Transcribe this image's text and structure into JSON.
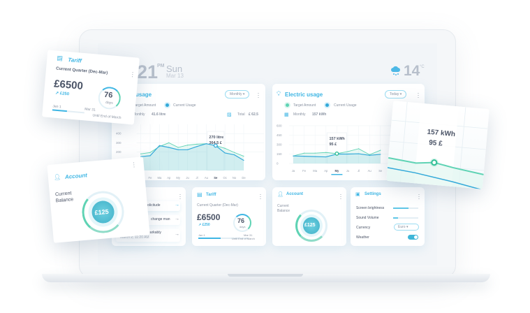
{
  "colors": {
    "accent": "#3fb6e4",
    "target": "#5fd3b4",
    "current": "#33a9d9",
    "text": "#4a5366"
  },
  "header": {
    "time": "21",
    "ampm": "PM",
    "day": "Sun",
    "date": "Mar 13",
    "weather_icon": "cloud-snow-icon",
    "temp": "14",
    "temp_unit": "°C"
  },
  "water": {
    "title": "usage",
    "dropdown": "Monthly",
    "legend": [
      "Target Amount",
      "Current Usage"
    ],
    "period": "Monthly",
    "amount": "41.6 litre",
    "total_label": "Total",
    "total": "£ 62.5",
    "tooltip": [
      "270 litre",
      "364.5 £"
    ]
  },
  "electric": {
    "title": "Electric usage",
    "dropdown": "Today",
    "legend": [
      "Target Amount",
      "Current Usage"
    ],
    "period": "Monthly",
    "amount": "157 kWh",
    "tooltip": [
      "157 kWh",
      "95 £"
    ]
  },
  "chart_data": [
    {
      "type": "area",
      "title": "usage",
      "ylim": [
        0,
        500
      ],
      "yticks": [
        200,
        300,
        400
      ],
      "categories": [
        "Ja",
        "Fe",
        "Ma",
        "Ap",
        "My",
        "Ju",
        "Jl",
        "Au",
        "Se",
        "Oc",
        "No",
        "De"
      ],
      "highlight": "Se",
      "series": [
        {
          "name": "Target Amount",
          "values": [
            180,
            195,
            260,
            300,
            250,
            275,
            285,
            290,
            270,
            240,
            195,
            155
          ]
        },
        {
          "name": "Current Usage",
          "values": [
            150,
            160,
            270,
            250,
            225,
            225,
            260,
            290,
            270,
            190,
            170,
            110
          ]
        }
      ]
    },
    {
      "type": "area",
      "title": "Electric usage",
      "ylim": [
        0,
        600
      ],
      "yticks": [
        0,
        150,
        300,
        450,
        600
      ],
      "categories": [
        "Ja",
        "Fe",
        "Ma",
        "Ap",
        "My",
        "Ju",
        "Jl",
        "Au",
        "Se"
      ],
      "highlight": "My",
      "series": [
        {
          "name": "Target Amount",
          "values": [
            120,
            165,
            165,
            175,
            157,
            190,
            235,
            140,
            210
          ]
        },
        {
          "name": "Current Usage",
          "values": [
            120,
            115,
            110,
            105,
            150,
            150,
            155,
            130,
            145
          ]
        }
      ]
    }
  ],
  "notifications": {
    "items": [
      {
        "text": "se solicitude"
      },
      {
        "text": "change man"
      },
      {
        "text": "Indulgence ten remarkably",
        "time": "March 2, 11:20 AM"
      }
    ]
  },
  "tariff": {
    "title": "Tariff",
    "quarter": "Current Quarter (Dec-Mar)",
    "amount": "£6500",
    "delta": "↗ £250",
    "start": "Jan 1",
    "end": "Mar 31",
    "days": "76",
    "days_unit": "days",
    "until": "Until End of March",
    "progress": 0.45
  },
  "account": {
    "title": "Account",
    "label_line1": "Current",
    "label_line2": "Balance",
    "balance": "£125",
    "gauge": 0.4
  },
  "settings": {
    "title": "Settings",
    "brightness_label": "Screen brightness",
    "brightness": 0.62,
    "volume_label": "Sound Volume",
    "volume": 0.2,
    "currency_label": "Currency",
    "currency": "Euro",
    "weather_label": "Weather",
    "weather_on": true
  },
  "zoomed": {
    "line1": "157 kWh",
    "line2": "95 £"
  }
}
